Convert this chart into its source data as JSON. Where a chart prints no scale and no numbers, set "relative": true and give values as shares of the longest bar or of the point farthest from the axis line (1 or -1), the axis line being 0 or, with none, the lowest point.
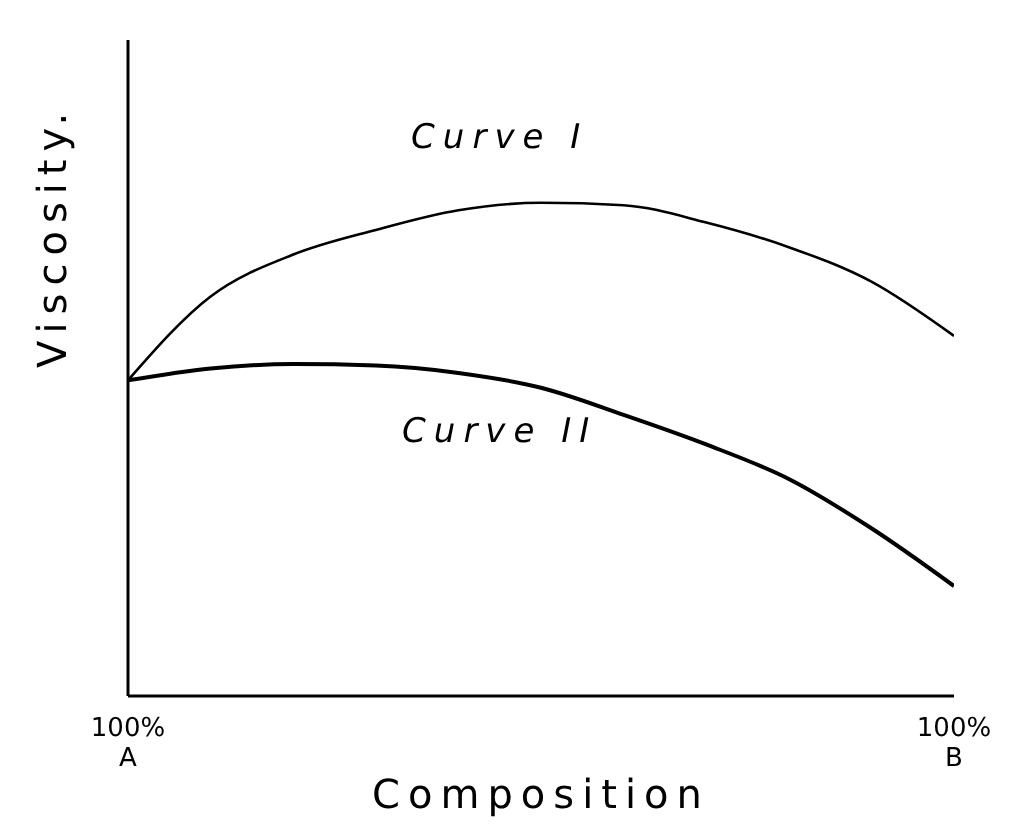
{
  "chart_data": {
    "type": "line",
    "relative": true,
    "xlabel": "Composition",
    "ylabel": "Viscosity.",
    "categories": [
      "100%\nA",
      null,
      null,
      null,
      null,
      null,
      null,
      null,
      null,
      null,
      "100%\nB"
    ],
    "tick_labels": "x",
    "grid": false,
    "legend": false,
    "marker": "none",
    "line_style": "solid",
    "series": [
      {
        "name": "Curve I",
        "color": "#000000",
        "values": [
          0.64,
          0.81,
          0.895,
          0.945,
          0.985,
          1,
          0.995,
          0.96,
          0.91,
          0.84,
          0.73
        ]
      },
      {
        "name": "Curve II",
        "color": "#000000",
        "values": [
          0.64,
          0.664,
          0.673,
          0.67,
          0.655,
          0.625,
          0.57,
          0.51,
          0.44,
          0.34,
          0.223
        ]
      }
    ]
  }
}
